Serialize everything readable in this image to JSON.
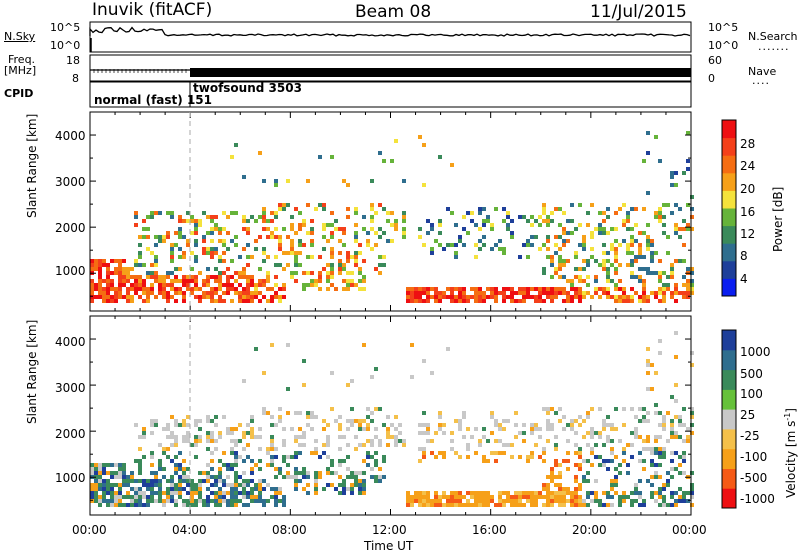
{
  "header": {
    "station": "Inuvik (fitACF)",
    "beam": "Beam 08",
    "date": "11/Jul/2015"
  },
  "strips": {
    "nsky_label": "N.Sky",
    "nsearch_label": "N.Search",
    "freq_label": "Freq.",
    "freq_unit": "[MHz]",
    "nave_label": "Nave",
    "cpid_label": "CPID",
    "nsky_ticks": [
      "10^5",
      "10^0"
    ],
    "nsearch_ticks": [
      "10^5",
      "10^0"
    ],
    "freq_ticks": [
      "18",
      "8"
    ],
    "nave_ticks": [
      "60",
      "0"
    ],
    "cpid_segments": [
      {
        "label": "normal (fast) 151",
        "start_hour": 0
      },
      {
        "label": "twofsound 3503",
        "start_hour": 4
      }
    ]
  },
  "chart_data": [
    {
      "type": "heatmap",
      "name": "power",
      "ylabel": "Slant Range [km]",
      "xlabel": "",
      "xlim": [
        0,
        24
      ],
      "ylim": [
        180,
        4500
      ],
      "y_ticks": [
        "1000",
        "2000",
        "3000",
        "4000"
      ],
      "colorbar_label": "Power [dB]",
      "colorbar_ticks": [
        "28",
        "24",
        "20",
        "16",
        "12",
        "8",
        "4"
      ],
      "colors": [
        "#0a1ef0",
        "#1e3f9a",
        "#2f6e8e",
        "#3a8a5a",
        "#66b33a",
        "#f4e23c",
        "#f6a019",
        "#f56d12",
        "#f4401a",
        "#ee0f12"
      ]
    },
    {
      "type": "heatmap",
      "name": "velocity",
      "ylabel": "Slant Range [km]",
      "xlabel": "Time UT",
      "xlim": [
        0,
        24
      ],
      "ylim": [
        180,
        4500
      ],
      "y_ticks": [
        "1000",
        "2000",
        "3000",
        "4000"
      ],
      "x_ticks": [
        "00:00",
        "04:00",
        "08:00",
        "12:00",
        "16:00",
        "20:00",
        "00:00"
      ],
      "colorbar_label": "Velocity [m s",
      "colorbar_unit_exp": "-1",
      "colorbar_unit_close": "]",
      "colorbar_ticks": [
        "1000",
        "500",
        "100",
        "25",
        "-25",
        "-100",
        "-500",
        "-1000"
      ],
      "colors": [
        "#ee0f12",
        "#f55a16",
        "#f6a019",
        "#f4c04a",
        "#c8c8c8",
        "#66c13a",
        "#3a8a5a",
        "#2f6e8e",
        "#1e3f9a"
      ]
    }
  ]
}
